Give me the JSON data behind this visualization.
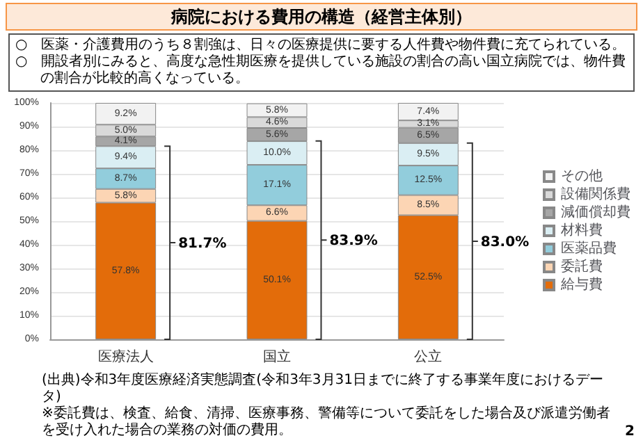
{
  "chart_data": {
    "type": "bar",
    "stacked": true,
    "title": "病院における費用の構造（経営主体別）",
    "categories": [
      "医療法人",
      "国立",
      "公立"
    ],
    "series": [
      {
        "name": "給与費",
        "color": "#e36c0a",
        "values": [
          57.8,
          50.1,
          52.5
        ],
        "value_labels": [
          "57.8%",
          "50.1%",
          "52.5%"
        ]
      },
      {
        "name": "委託費",
        "color": "#fcd5b4",
        "values": [
          5.8,
          6.6,
          8.5
        ],
        "value_labels": [
          "5.8%",
          "6.6%",
          "8.5%"
        ]
      },
      {
        "name": "医薬品費",
        "color": "#92cddc",
        "values": [
          8.7,
          17.1,
          12.5
        ],
        "value_labels": [
          "8.7%",
          "17.1%",
          "12.5%"
        ]
      },
      {
        "name": "材料費",
        "color": "#daeef3",
        "values": [
          9.4,
          10.0,
          9.5
        ],
        "value_labels": [
          "9.4%",
          "10.0%",
          "9.5%"
        ]
      },
      {
        "name": "減価償却費",
        "color": "#a6a6a6",
        "values": [
          4.1,
          5.6,
          6.5
        ],
        "value_labels": [
          "4.1%",
          "5.6%",
          "6.5%"
        ]
      },
      {
        "name": "設備関係費",
        "color": "#d9d9d9",
        "values": [
          5.0,
          4.6,
          3.1
        ],
        "value_labels": [
          "5.0%",
          "4.6%",
          "3.1%"
        ]
      },
      {
        "name": "その他",
        "color": "#f2f2f2",
        "values": [
          9.2,
          5.8,
          7.4
        ],
        "value_labels": [
          "9.2%",
          "5.8%",
          "7.4%"
        ]
      }
    ],
    "ylim": [
      0,
      100
    ],
    "yticks": [
      {
        "value": 0,
        "label": "0%"
      },
      {
        "value": 10,
        "label": "10%"
      },
      {
        "value": 20,
        "label": "20%"
      },
      {
        "value": 30,
        "label": "30%"
      },
      {
        "value": 40,
        "label": "40%"
      },
      {
        "value": 50,
        "label": "50%"
      },
      {
        "value": 60,
        "label": "60%"
      },
      {
        "value": 70,
        "label": "70%"
      },
      {
        "value": 80,
        "label": "80%"
      },
      {
        "value": 90,
        "label": "90%"
      },
      {
        "value": 100,
        "label": "100%"
      }
    ],
    "grid": "y",
    "legend": "right",
    "annotations": [
      "○　医薬・介護費用のうち８割強は、日々の医療提供に要する人件費や物件費に充てられている。",
      "○　開設者別にみると、高度な急性期医療を提供している施設の割合の高い国立病院では、物件費の割合が比較的高くなっている。",
      "81.7%",
      "83.9%",
      "83.0%",
      "(出典)令和3年度医療経済実態調査(令和3年3月31日までに終了する事業年度におけるデータ)",
      "※委託費は、検査、給食、清掃、医療事務、警備等について委託をした場合及び派遣労働者を受け入れた場合の業務の対価の費用。",
      "2"
    ]
  }
}
